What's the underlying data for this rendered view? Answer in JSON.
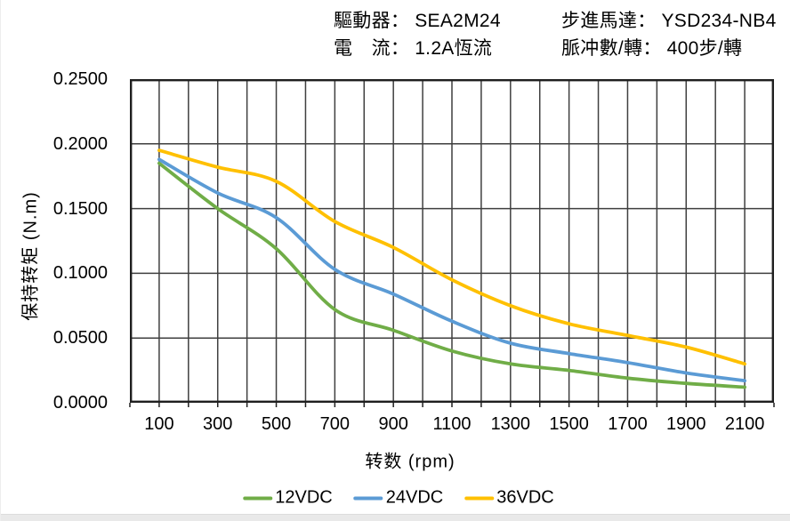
{
  "header": {
    "rows": [
      {
        "label": "驅動器：",
        "value": "SEA2M24"
      },
      {
        "label": "電　流：",
        "value": "1.2A恆流"
      },
      {
        "label": "步進馬達：",
        "value": "YSD234-NB4"
      },
      {
        "label": "脈冲數/轉：",
        "value": "400步/轉"
      }
    ]
  },
  "chart_data": {
    "type": "line",
    "title": "",
    "xlabel": "转数 (rpm)",
    "ylabel": "保持转矩 (N.m)",
    "x": [
      100,
      300,
      500,
      700,
      900,
      1100,
      1300,
      1500,
      1700,
      1900,
      2100
    ],
    "series": [
      {
        "name": "12VDC",
        "color": "#70AD47",
        "values": [
          0.185,
          0.15,
          0.119,
          0.072,
          0.056,
          0.04,
          0.03,
          0.025,
          0.019,
          0.015,
          0.012
        ]
      },
      {
        "name": "24VDC",
        "color": "#5B9BD5",
        "values": [
          0.188,
          0.162,
          0.143,
          0.103,
          0.084,
          0.063,
          0.046,
          0.038,
          0.031,
          0.023,
          0.017
        ]
      },
      {
        "name": "36VDC",
        "color": "#FFC000",
        "values": [
          0.195,
          0.182,
          0.171,
          0.14,
          0.12,
          0.095,
          0.075,
          0.061,
          0.052,
          0.043,
          0.03
        ]
      }
    ],
    "xlim": [
      0,
      2200
    ],
    "ylim": [
      0,
      0.25
    ],
    "x_gridline_step": 100,
    "y_gridline_step": 0.05,
    "x_ticklabels": [
      "100",
      "300",
      "500",
      "700",
      "900",
      "1100",
      "1300",
      "1500",
      "1700",
      "1900",
      "2100"
    ],
    "y_ticklabels": [
      "0.0000",
      "0.0500",
      "0.1000",
      "0.1500",
      "0.2000",
      "0.2500"
    ],
    "grid": "on",
    "legend_position": "bottom"
  },
  "colors": {
    "gridline": "#3f3f3f",
    "plot_border": "#1f1f1f",
    "text": "#000000",
    "footer_strip": "#e9e9e9"
  }
}
